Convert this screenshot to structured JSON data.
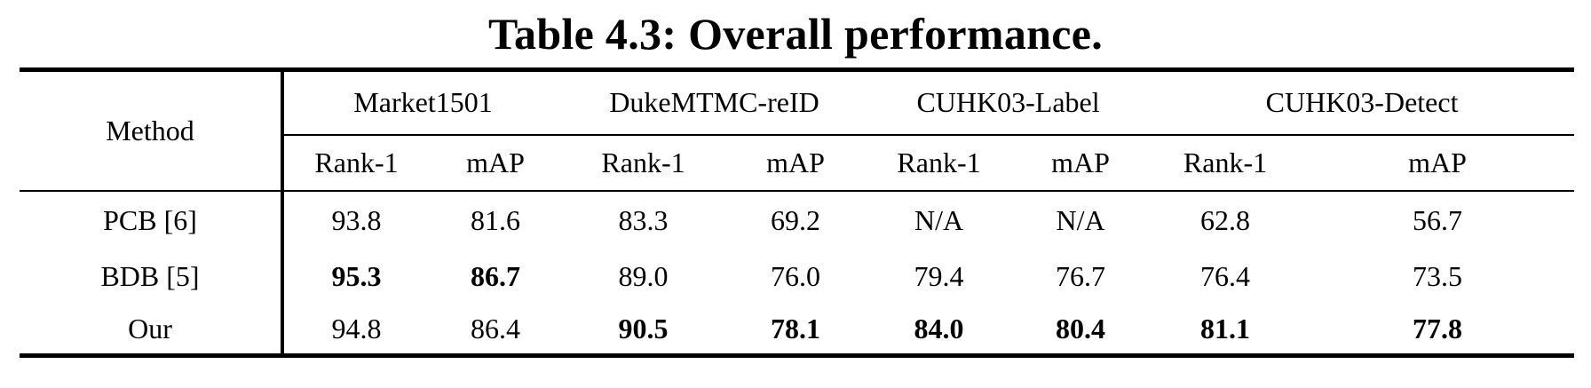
{
  "caption": "Table 4.3: Overall performance.",
  "table": {
    "method_header": "Method",
    "datasets": [
      "Market1501",
      "DukeMTMC-reID",
      "CUHK03-Label",
      "CUHK03-Detect"
    ],
    "metrics": [
      "Rank-1",
      "mAP",
      "Rank-1",
      "mAP",
      "Rank-1",
      "mAP",
      "Rank-1",
      "mAP"
    ],
    "rows": [
      {
        "method": "PCB [6]",
        "values": [
          "93.8",
          "81.6",
          "83.3",
          "69.2",
          "N/A",
          "N/A",
          "62.8",
          "56.7"
        ],
        "bold": [
          false,
          false,
          false,
          false,
          false,
          false,
          false,
          false
        ]
      },
      {
        "method": "BDB [5]",
        "values": [
          "95.3",
          "86.7",
          "89.0",
          "76.0",
          "79.4",
          "76.7",
          "76.4",
          "73.5"
        ],
        "bold": [
          true,
          true,
          false,
          false,
          false,
          false,
          false,
          false
        ]
      },
      {
        "method": "Our",
        "values": [
          "94.8",
          "86.4",
          "90.5",
          "78.1",
          "84.0",
          "80.4",
          "81.1",
          "77.8"
        ],
        "bold": [
          false,
          false,
          true,
          true,
          true,
          true,
          true,
          true
        ]
      }
    ]
  }
}
